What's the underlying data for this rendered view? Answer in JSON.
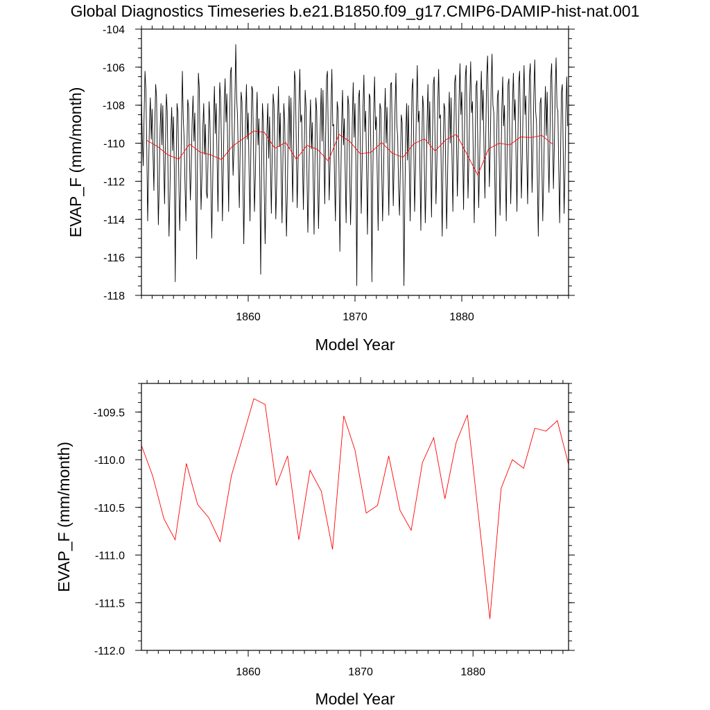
{
  "title": "Global Diagnostics Timeseries b.e21.B1850.f09_g17.CMIP6-DAMIP-hist-nat.001",
  "colors": {
    "monthly": "#000000",
    "annual": "#ff0000",
    "axis": "#000000"
  },
  "chart_data": [
    {
      "type": "line",
      "xlabel": "Model Year",
      "ylabel": "EVAP_F (mm/month)",
      "xlim": [
        1850,
        1890
      ],
      "ylim": [
        -118,
        -104
      ],
      "xticks": [
        1860,
        1870,
        1880
      ],
      "xtick_labels": [
        "1860",
        "1870",
        "1880"
      ],
      "yticks": [
        -104,
        -106,
        -108,
        -110,
        -112,
        -114,
        -116,
        -118
      ],
      "ytick_labels": [
        "-104",
        "-106",
        "-108",
        "-110",
        "-112",
        "-114",
        "-116",
        "-118"
      ],
      "series": [
        {
          "role": "monthly",
          "x_start": 1850.0,
          "x_step": 0.0833333,
          "values": [
            -107.5,
            -109.8,
            -111.2,
            -108.5,
            -106.2,
            -107.2,
            -110.3,
            -114.1,
            -111.5,
            -108.9,
            -107.6,
            -109.8,
            -108.2,
            -110.6,
            -112.5,
            -109.1,
            -106.9,
            -107.6,
            -111.1,
            -114.3,
            -112.1,
            -109.2,
            -107.9,
            -110.1,
            -108.0,
            -111.0,
            -113.2,
            -110.0,
            -107.4,
            -108.3,
            -112.2,
            -114.9,
            -112.6,
            -109.6,
            -108.1,
            -110.4,
            -108.6,
            -111.6,
            -117.3,
            -111.2,
            -107.9,
            -108.4,
            -111.9,
            -114.6,
            -112.4,
            -109.1,
            -106.2,
            -108.7,
            -109.8,
            -112.3,
            -114.1,
            -110.8,
            -107.7,
            -108.1,
            -110.9,
            -113.0,
            -111.2,
            -108.8,
            -107.5,
            -109.9,
            -108.4,
            -112.0,
            -116.1,
            -111.0,
            -106.3,
            -107.1,
            -110.7,
            -113.5,
            -111.7,
            -109.2,
            -107.9,
            -110.6,
            -109.0,
            -112.6,
            -112.9,
            -110.4,
            -107.8,
            -108.9,
            -112.0,
            -115.0,
            -112.4,
            -109.0,
            -107.0,
            -109.5,
            -107.9,
            -110.8,
            -113.6,
            -109.9,
            -106.8,
            -107.7,
            -110.2,
            -114.1,
            -111.4,
            -108.0,
            -106.6,
            -108.9,
            -107.4,
            -110.5,
            -113.6,
            -109.3,
            -106.3,
            -106.0,
            -109.5,
            -111.7,
            -110.3,
            -107.9,
            -104.8,
            -107.6,
            -108.6,
            -111.2,
            -113.4,
            -110.0,
            -107.3,
            -107.8,
            -111.9,
            -115.3,
            -112.2,
            -108.6,
            -106.9,
            -109.8,
            -108.4,
            -111.6,
            -114.1,
            -110.3,
            -107.0,
            -107.2,
            -110.5,
            -113.6,
            -111.8,
            -108.9,
            -107.3,
            -110.1,
            -108.7,
            -111.8,
            -116.9,
            -111.4,
            -107.9,
            -108.9,
            -112.5,
            -115.3,
            -112.6,
            -109.4,
            -107.9,
            -110.8,
            -108.6,
            -111.2,
            -113.7,
            -110.4,
            -107.4,
            -108.0,
            -111.0,
            -114.0,
            -112.1,
            -108.9,
            -107.0,
            -110.2,
            -108.4,
            -111.6,
            -114.2,
            -110.8,
            -107.9,
            -108.9,
            -112.4,
            -114.9,
            -112.5,
            -109.1,
            -107.5,
            -110.3,
            -107.6,
            -110.5,
            -113.1,
            -109.7,
            -106.2,
            -106.7,
            -110.0,
            -113.4,
            -111.2,
            -108.0,
            -106.1,
            -108.9,
            -108.5,
            -111.0,
            -113.5,
            -110.2,
            -107.2,
            -108.1,
            -111.5,
            -114.7,
            -112.4,
            -109.4,
            -107.7,
            -110.3,
            -108.9,
            -111.8,
            -114.8,
            -110.9,
            -107.6,
            -108.3,
            -111.7,
            -114.5,
            -112.0,
            -109.0,
            -107.1,
            -109.9,
            -107.2,
            -110.1,
            -113.2,
            -109.7,
            -106.6,
            -106.2,
            -109.8,
            -113.0,
            -111.1,
            -108.2,
            -106.1,
            -109.1,
            -109.0,
            -111.9,
            -114.1,
            -110.5,
            -107.8,
            -108.3,
            -111.3,
            -115.7,
            -112.1,
            -108.9,
            -107.2,
            -110.1,
            -108.7,
            -111.5,
            -114.2,
            -110.8,
            -107.5,
            -108.0,
            -111.6,
            -114.3,
            -111.9,
            -108.7,
            -106.8,
            -109.7,
            -107.9,
            -111.1,
            -117.5,
            -110.9,
            -107.6,
            -107.2,
            -110.3,
            -113.7,
            -111.3,
            -108.1,
            -106.4,
            -109.4,
            -108.3,
            -111.4,
            -114.8,
            -110.7,
            -107.4,
            -107.6,
            -110.9,
            -117.3,
            -111.8,
            -108.4,
            -106.5,
            -109.3,
            -108.6,
            -111.7,
            -114.6,
            -110.8,
            -107.9,
            -108.2,
            -111.3,
            -114.1,
            -112.0,
            -108.9,
            -107.1,
            -110.0,
            -108.1,
            -110.9,
            -113.8,
            -110.1,
            -106.9,
            -106.8,
            -110.2,
            -113.3,
            -111.0,
            -108.1,
            -106.3,
            -109.0,
            -109.7,
            -112.4,
            -113.8,
            -111.2,
            -108.5,
            -108.9,
            -112.4,
            -117.5,
            -113.0,
            -109.7,
            -107.9,
            -110.9,
            -108.0,
            -111.3,
            -114.1,
            -110.7,
            -107.2,
            -106.6,
            -110.0,
            -113.6,
            -111.4,
            -108.1,
            -105.9,
            -108.9,
            -108.3,
            -111.4,
            -114.6,
            -110.5,
            -107.5,
            -108.1,
            -111.4,
            -114.2,
            -111.9,
            -108.9,
            -106.9,
            -110.0,
            -107.8,
            -110.9,
            -113.9,
            -110.0,
            -106.9,
            -106.5,
            -109.9,
            -113.2,
            -111.1,
            -108.0,
            -106.1,
            -108.7,
            -108.5,
            -111.7,
            -114.9,
            -110.8,
            -107.9,
            -108.2,
            -111.6,
            -114.5,
            -111.9,
            -108.9,
            -107.3,
            -110.0,
            -107.6,
            -110.7,
            -113.6,
            -109.9,
            -106.8,
            -106.4,
            -109.6,
            -112.8,
            -110.7,
            -107.6,
            -105.8,
            -108.5,
            -107.3,
            -110.4,
            -113.5,
            -109.6,
            -106.5,
            -105.9,
            -109.3,
            -112.9,
            -110.8,
            -107.6,
            -105.7,
            -108.4,
            -107.8,
            -111.0,
            -114.2,
            -110.3,
            -107.0,
            -106.7,
            -110.1,
            -113.4,
            -111.1,
            -108.0,
            -106.2,
            -108.8,
            -107.2,
            -110.3,
            -112.9,
            -109.5,
            -106.4,
            -105.4,
            -108.9,
            -112.3,
            -110.2,
            -107.1,
            -105.3,
            -108.0,
            -108.4,
            -111.5,
            -114.9,
            -110.6,
            -107.6,
            -107.2,
            -110.6,
            -113.8,
            -111.3,
            -108.2,
            -106.5,
            -109.1,
            -108.0,
            -111.4,
            -114.1,
            -110.2,
            -106.9,
            -106.6,
            -110.1,
            -113.2,
            -111.0,
            -107.9,
            -106.3,
            -108.8,
            -107.7,
            -110.8,
            -113.6,
            -109.9,
            -106.8,
            -106.2,
            -109.7,
            -112.9,
            -110.8,
            -107.7,
            -105.9,
            -108.5,
            -107.5,
            -110.6,
            -113.2,
            -109.7,
            -106.5,
            -105.8,
            -109.4,
            -112.6,
            -110.4,
            -107.4,
            -105.6,
            -108.3,
            -108.9,
            -112.1,
            -114.9,
            -111.0,
            -107.9,
            -107.6,
            -111.0,
            -114.1,
            -111.9,
            -108.8,
            -107.0,
            -109.6,
            -107.3,
            -110.4,
            -112.6,
            -109.9,
            -106.6,
            -105.8,
            -109.2,
            -112.4,
            -110.2,
            -107.2,
            -105.5,
            -108.1,
            -108.3,
            -111.4,
            -114.2,
            -110.7,
            -107.3,
            -106.9,
            -110.4,
            -113.7,
            -111.5,
            -108.3,
            -106.5,
            -109.1
          ]
        },
        {
          "role": "annual",
          "x": [
            1850.5,
            1851.5,
            1852.5,
            1853.5,
            1854.5,
            1855.5,
            1856.5,
            1857.5,
            1858.5,
            1859.5,
            1860.5,
            1861.5,
            1862.5,
            1863.5,
            1864.5,
            1865.5,
            1866.5,
            1867.5,
            1868.5,
            1869.5,
            1870.5,
            1871.5,
            1872.5,
            1873.5,
            1874.5,
            1875.5,
            1876.5,
            1877.5,
            1878.5,
            1879.5,
            1880.5,
            1881.5,
            1882.5,
            1883.5,
            1884.5,
            1885.5,
            1886.5,
            1887.5,
            1888.5
          ],
          "values": [
            -109.85,
            -110.17,
            -110.62,
            -110.84,
            -110.04,
            -110.47,
            -110.61,
            -110.86,
            -110.17,
            -109.77,
            -109.36,
            -109.42,
            -110.27,
            -109.96,
            -110.84,
            -110.11,
            -110.33,
            -110.94,
            -109.54,
            -109.9,
            -110.56,
            -110.48,
            -109.96,
            -110.53,
            -110.74,
            -110.03,
            -109.77,
            -110.41,
            -109.82,
            -109.53,
            -110.6,
            -111.67,
            -110.3,
            -110.0,
            -110.09,
            -109.67,
            -109.7,
            -109.59,
            -110.05
          ]
        }
      ]
    },
    {
      "type": "line",
      "xlabel": "Model Year",
      "ylabel": "EVAP_F (mm/month)",
      "xlim": [
        1850.5,
        1888.5
      ],
      "ylim": [
        -112.0,
        -109.2
      ],
      "xticks": [
        1860,
        1870,
        1880
      ],
      "xtick_labels": [
        "1860",
        "1870",
        "1880"
      ],
      "yticks": [
        -109.5,
        -110.0,
        -110.5,
        -111.0,
        -111.5,
        -112.0
      ],
      "ytick_labels": [
        "-109.5",
        "-110.0",
        "-110.5",
        "-111.0",
        "-111.5",
        "-112.0"
      ],
      "series": [
        {
          "role": "annual",
          "x": [
            1850.5,
            1851.5,
            1852.5,
            1853.5,
            1854.5,
            1855.5,
            1856.5,
            1857.5,
            1858.5,
            1859.5,
            1860.5,
            1861.5,
            1862.5,
            1863.5,
            1864.5,
            1865.5,
            1866.5,
            1867.5,
            1868.5,
            1869.5,
            1870.5,
            1871.5,
            1872.5,
            1873.5,
            1874.5,
            1875.5,
            1876.5,
            1877.5,
            1878.5,
            1879.5,
            1880.5,
            1881.5,
            1882.5,
            1883.5,
            1884.5,
            1885.5,
            1886.5,
            1887.5,
            1888.5
          ],
          "values": [
            -109.85,
            -110.17,
            -110.62,
            -110.84,
            -110.04,
            -110.47,
            -110.61,
            -110.86,
            -110.17,
            -109.77,
            -109.36,
            -109.42,
            -110.27,
            -109.96,
            -110.84,
            -110.11,
            -110.33,
            -110.94,
            -109.54,
            -109.9,
            -110.56,
            -110.48,
            -109.96,
            -110.53,
            -110.74,
            -110.03,
            -109.77,
            -110.41,
            -109.82,
            -109.53,
            -110.6,
            -111.67,
            -110.3,
            -110.0,
            -110.09,
            -109.67,
            -109.7,
            -109.59,
            -110.05
          ]
        }
      ]
    }
  ]
}
